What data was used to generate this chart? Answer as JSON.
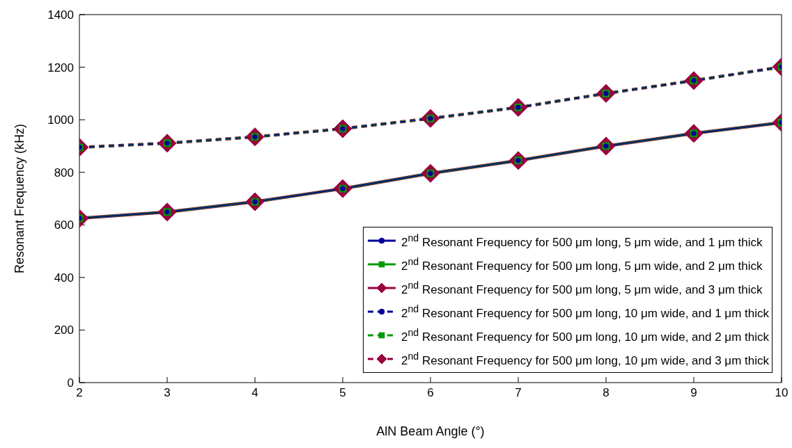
{
  "chart_data": {
    "type": "line",
    "xlabel": "AlN Beam Angle (°)",
    "ylabel": "Resonant Frequency (kHz)",
    "x": [
      2,
      3,
      4,
      5,
      6,
      7,
      8,
      9,
      10
    ],
    "xlim": [
      2,
      10
    ],
    "xticks": [
      2,
      3,
      4,
      5,
      6,
      7,
      8,
      9,
      10
    ],
    "ylim": [
      0,
      1400
    ],
    "yticks": [
      0,
      200,
      400,
      600,
      800,
      1000,
      1200,
      1400
    ],
    "grid": false,
    "legend": "bottom right",
    "series": [
      {
        "name": "2$^{nd}$ Resonant Frequency for 500 μm long, 5 μm wide, and 1 μm thick",
        "color": "#000099",
        "marker": "circle",
        "line_style": "solid",
        "values": [
          625,
          649,
          688,
          738,
          796,
          845,
          900,
          948,
          989
        ]
      },
      {
        "name": "2$^{nd}$ Resonant Frequency for 500 μm long, 5 μm wide, and 2 μm thick",
        "color": "#009900",
        "marker": "square",
        "line_style": "solid",
        "values": [
          625,
          649,
          688,
          738,
          796,
          845,
          900,
          948,
          989
        ]
      },
      {
        "name": "2$^{nd}$ Resonant Frequency for 500 μm long, 5 μm wide, and 3 μm thick",
        "color": "#990040",
        "marker": "diamond",
        "line_style": "solid",
        "values": [
          625,
          649,
          688,
          738,
          796,
          845,
          900,
          948,
          989
        ]
      },
      {
        "name": "2$^{nd}$ Resonant Frequency for 500 μm long, 10 μm wide, and 1 μm thick",
        "color": "#000099",
        "marker": "circle",
        "line_style": "dashed",
        "values": [
          895,
          911,
          935,
          966,
          1005,
          1047,
          1100,
          1149,
          1201
        ]
      },
      {
        "name": "2$^{nd}$ Resonant Frequency for 500 μm long, 10 μm wide, and 2 μm thick",
        "color": "#009900",
        "marker": "square",
        "line_style": "dashed",
        "values": [
          895,
          911,
          935,
          966,
          1005,
          1047,
          1100,
          1149,
          1201
        ]
      },
      {
        "name": "2$^{nd}$ Resonant Frequency for 500 μm long, 10 μm wide, and 3 μm thick",
        "color": "#990040",
        "marker": "diamond",
        "line_style": "dashed",
        "values": [
          895,
          911,
          935,
          966,
          1005,
          1047,
          1100,
          1149,
          1201
        ]
      }
    ]
  }
}
